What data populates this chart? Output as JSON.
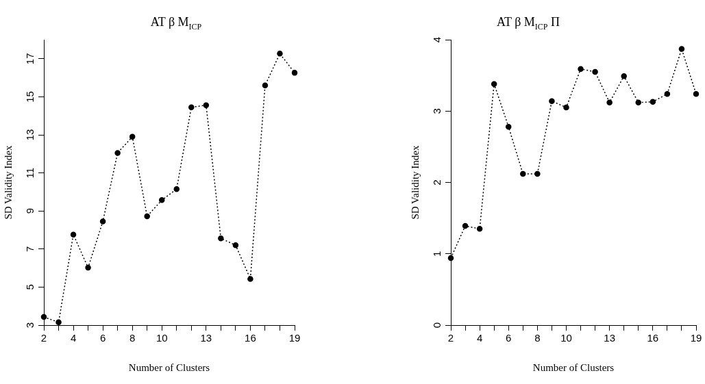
{
  "chart_data": [
    {
      "type": "line",
      "title": "AT β M$_{ICP}$",
      "xlabel": "Number of Clusters",
      "ylabel": "SD Validity Index",
      "x": [
        2,
        3,
        4,
        5,
        6,
        7,
        8,
        9,
        10,
        11,
        12,
        13,
        14,
        15,
        16,
        17,
        18,
        19
      ],
      "series": [
        {
          "color": "#000000",
          "values": [
            3.43,
            3.15,
            7.76,
            6.02,
            8.45,
            12.05,
            12.9,
            8.72,
            9.57,
            10.15,
            14.45,
            14.56,
            7.56,
            7.2,
            5.43,
            15.6,
            17.27,
            16.26
          ]
        }
      ],
      "xlim": [
        2,
        19
      ],
      "xticks": [
        2,
        {
          "value": 3,
          "label": null
        },
        4,
        {
          "value": 5,
          "label": null
        },
        6,
        {
          "value": 7,
          "label": null
        },
        8,
        {
          "value": 9,
          "label": null
        },
        10,
        {
          "value": 11,
          "label": null
        },
        {
          "value": 12,
          "label": null
        },
        13,
        {
          "value": 14,
          "label": null
        },
        {
          "value": 15,
          "label": null
        },
        16,
        {
          "value": 17,
          "label": null
        },
        {
          "value": 18,
          "label": null
        },
        19
      ],
      "ylim": [
        3,
        18
      ],
      "yticks": [
        3,
        5,
        7,
        9,
        11,
        13,
        15,
        17
      ],
      "marker": "circle",
      "line_style": "dotted",
      "grid": false,
      "legend": false
    },
    {
      "type": "line",
      "title": "AT β M$_{ICP}$ Π",
      "xlabel": "Number of Clusters",
      "ylabel": "SD Validity Index",
      "x": [
        2,
        3,
        4,
        5,
        6,
        7,
        8,
        9,
        10,
        11,
        12,
        13,
        14,
        15,
        16,
        17,
        18,
        19
      ],
      "series": [
        {
          "color": "#000000",
          "values": [
            0.94,
            1.39,
            1.35,
            3.38,
            2.78,
            2.12,
            2.12,
            3.14,
            3.05,
            3.59,
            3.55,
            3.12,
            3.49,
            3.12,
            3.13,
            3.24,
            3.87,
            3.24
          ]
        }
      ],
      "xlim": [
        2,
        19
      ],
      "xticks": [
        2,
        {
          "value": 3,
          "label": null
        },
        4,
        {
          "value": 5,
          "label": null
        },
        6,
        {
          "value": 7,
          "label": null
        },
        8,
        {
          "value": 9,
          "label": null
        },
        10,
        {
          "value": 11,
          "label": null
        },
        {
          "value": 12,
          "label": null
        },
        13,
        {
          "value": 14,
          "label": null
        },
        {
          "value": 15,
          "label": null
        },
        16,
        {
          "value": 17,
          "label": null
        },
        {
          "value": 18,
          "label": null
        },
        19
      ],
      "ylim": [
        0,
        4
      ],
      "yticks": [
        0,
        1,
        2,
        3,
        4
      ],
      "marker": "circle",
      "line_style": "dotted",
      "grid": false,
      "legend": false
    }
  ]
}
